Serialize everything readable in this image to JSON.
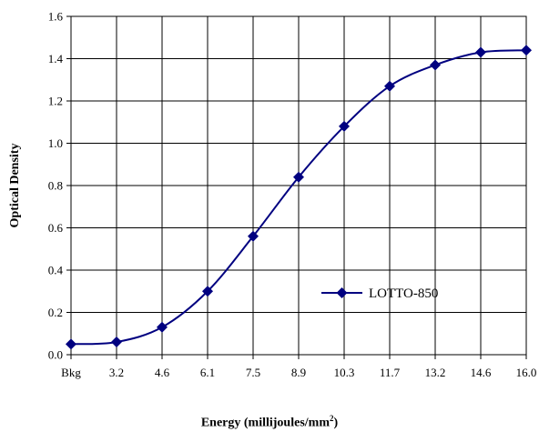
{
  "chart_data": {
    "type": "line",
    "categories": [
      "Bkg",
      "3.2",
      "4.6",
      "6.1",
      "7.5",
      "8.9",
      "10.3",
      "11.7",
      "13.2",
      "14.6",
      "16.0"
    ],
    "series": [
      {
        "name": "LOTTO-850",
        "values": [
          0.05,
          0.06,
          0.13,
          0.3,
          0.56,
          0.84,
          1.08,
          1.27,
          1.37,
          1.43,
          1.44
        ]
      }
    ],
    "ylim": [
      0.0,
      1.6
    ],
    "yticks": [
      "0.0",
      "0.2",
      "0.4",
      "0.6",
      "0.8",
      "1.0",
      "1.2",
      "1.4",
      "1.6"
    ],
    "ylabel": "Optical Density",
    "xlabel_main": "Energy (millijoules/mm",
    "xlabel_sup": "2",
    "xlabel_end": ")",
    "grid": true,
    "legend_position": "lower-right",
    "colors": {
      "series": "#000080",
      "grid": "#000000"
    }
  }
}
